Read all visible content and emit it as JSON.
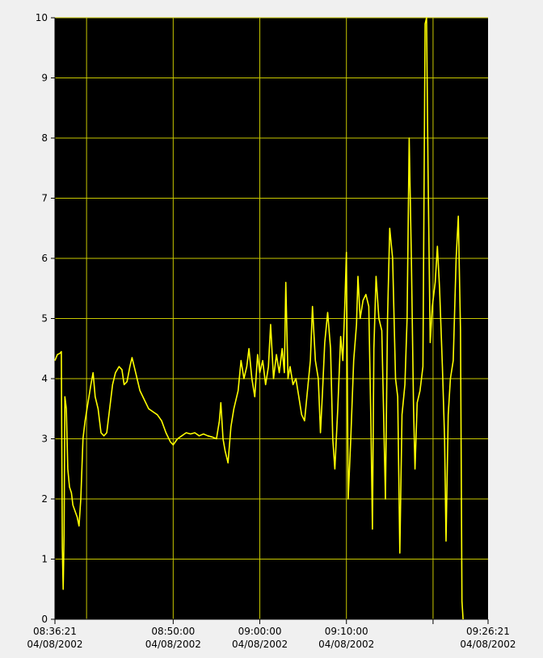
{
  "chart_data": {
    "type": "line",
    "title": "",
    "xlabel": "",
    "ylabel": "",
    "ylim": [
      0,
      10
    ],
    "xlim": [
      "08:36:21",
      "09:26:21"
    ],
    "grid": true,
    "colors": {
      "plot_background": "#000000",
      "page_background": "#f0f0f0",
      "grid": "#c8c800",
      "series": "#ffff00",
      "axis": "#000000"
    },
    "y_ticks": [
      {
        "value": 0,
        "label": "0"
      },
      {
        "value": 1,
        "label": "1"
      },
      {
        "value": 2,
        "label": "2"
      },
      {
        "value": 3,
        "label": "3"
      },
      {
        "value": 4,
        "label": "4"
      },
      {
        "value": 5,
        "label": "5"
      },
      {
        "value": 6,
        "label": "6"
      },
      {
        "value": 7,
        "label": "7"
      },
      {
        "value": 8,
        "label": "8"
      },
      {
        "value": 9,
        "label": "9"
      },
      {
        "value": 10,
        "label": "10"
      }
    ],
    "x_ticks": [
      {
        "time": "08:36:21",
        "time_label": "08:36:21",
        "date_label": "04/08/2002"
      },
      {
        "time": "08:50:00",
        "time_label": "08:50:00",
        "date_label": "04/08/2002"
      },
      {
        "time": "09:00:00",
        "time_label": "09:00:00",
        "date_label": "04/08/2002"
      },
      {
        "time": "09:10:00",
        "time_label": "09:10:00",
        "date_label": "04/08/2002"
      },
      {
        "time": "09:20:00",
        "time_label": "",
        "date_label": ""
      },
      {
        "time": "09:26:21",
        "time_label": "09:26:21",
        "date_label": "04/08/2002"
      }
    ],
    "x_gridlines": [
      "08:40:00",
      "08:50:00",
      "09:00:00",
      "09:10:00",
      "09:20:00"
    ],
    "series": [
      {
        "name": "",
        "points": [
          [
            "08:36:21",
            4.3
          ],
          [
            "08:36:38",
            4.4
          ],
          [
            "08:36:55",
            4.42
          ],
          [
            "08:37:05",
            4.45
          ],
          [
            "08:37:12",
            1.2
          ],
          [
            "08:37:18",
            0.5
          ],
          [
            "08:37:24",
            1.4
          ],
          [
            "08:37:30",
            3.7
          ],
          [
            "08:37:40",
            3.5
          ],
          [
            "08:37:50",
            2.5
          ],
          [
            "08:38:02",
            2.2
          ],
          [
            "08:38:15",
            2.1
          ],
          [
            "08:38:25",
            1.9
          ],
          [
            "08:38:40",
            1.8
          ],
          [
            "08:38:55",
            1.7
          ],
          [
            "08:39:08",
            1.55
          ],
          [
            "08:39:20",
            2.0
          ],
          [
            "08:39:35",
            3.0
          ],
          [
            "08:39:50",
            3.3
          ],
          [
            "08:40:10",
            3.6
          ],
          [
            "08:40:30",
            3.9
          ],
          [
            "08:40:45",
            4.1
          ],
          [
            "08:41:00",
            3.7
          ],
          [
            "08:41:20",
            3.5
          ],
          [
            "08:41:40",
            3.1
          ],
          [
            "08:42:00",
            3.05
          ],
          [
            "08:42:20",
            3.1
          ],
          [
            "08:42:40",
            3.5
          ],
          [
            "08:43:00",
            3.9
          ],
          [
            "08:43:20",
            4.1
          ],
          [
            "08:43:45",
            4.2
          ],
          [
            "08:44:05",
            4.15
          ],
          [
            "08:44:20",
            3.9
          ],
          [
            "08:44:40",
            3.95
          ],
          [
            "08:45:00",
            4.2
          ],
          [
            "08:45:15",
            4.35
          ],
          [
            "08:45:40",
            4.1
          ],
          [
            "08:46:10",
            3.8
          ],
          [
            "08:46:40",
            3.65
          ],
          [
            "08:47:10",
            3.5
          ],
          [
            "08:47:40",
            3.45
          ],
          [
            "08:48:10",
            3.4
          ],
          [
            "08:48:40",
            3.3
          ],
          [
            "08:49:10",
            3.1
          ],
          [
            "08:49:40",
            2.95
          ],
          [
            "08:50:00",
            2.9
          ],
          [
            "08:50:30",
            3.0
          ],
          [
            "08:51:00",
            3.05
          ],
          [
            "08:51:30",
            3.1
          ],
          [
            "08:52:00",
            3.08
          ],
          [
            "08:52:30",
            3.1
          ],
          [
            "08:53:00",
            3.05
          ],
          [
            "08:53:30",
            3.08
          ],
          [
            "08:54:00",
            3.05
          ],
          [
            "08:54:30",
            3.03
          ],
          [
            "08:55:00",
            3.0
          ],
          [
            "08:55:20",
            3.3
          ],
          [
            "08:55:30",
            3.6
          ],
          [
            "08:55:45",
            3.0
          ],
          [
            "08:56:00",
            2.8
          ],
          [
            "08:56:20",
            2.6
          ],
          [
            "08:56:40",
            3.2
          ],
          [
            "08:57:00",
            3.5
          ],
          [
            "08:57:30",
            3.8
          ],
          [
            "08:57:50",
            4.3
          ],
          [
            "08:58:10",
            4.0
          ],
          [
            "08:58:30",
            4.2
          ],
          [
            "08:58:45",
            4.5
          ],
          [
            "08:59:05",
            4.0
          ],
          [
            "08:59:25",
            3.7
          ],
          [
            "08:59:45",
            4.4
          ],
          [
            "09:00:00",
            4.1
          ],
          [
            "09:00:20",
            4.3
          ],
          [
            "09:00:40",
            3.9
          ],
          [
            "09:01:00",
            4.2
          ],
          [
            "09:01:15",
            4.9
          ],
          [
            "09:01:35",
            4.0
          ],
          [
            "09:01:55",
            4.4
          ],
          [
            "09:02:15",
            4.1
          ],
          [
            "09:02:35",
            4.5
          ],
          [
            "09:02:50",
            4.1
          ],
          [
            "09:03:00",
            5.6
          ],
          [
            "09:03:15",
            4.0
          ],
          [
            "09:03:30",
            4.2
          ],
          [
            "09:03:50",
            3.9
          ],
          [
            "09:04:10",
            4.0
          ],
          [
            "09:04:30",
            3.7
          ],
          [
            "09:04:50",
            3.4
          ],
          [
            "09:05:10",
            3.3
          ],
          [
            "09:05:30",
            3.8
          ],
          [
            "09:05:50",
            4.3
          ],
          [
            "09:06:05",
            5.2
          ],
          [
            "09:06:25",
            4.3
          ],
          [
            "09:06:45",
            4.0
          ],
          [
            "09:07:00",
            3.1
          ],
          [
            "09:07:15",
            3.8
          ],
          [
            "09:07:30",
            4.6
          ],
          [
            "09:07:50",
            5.1
          ],
          [
            "09:08:10",
            4.5
          ],
          [
            "09:08:25",
            3.0
          ],
          [
            "09:08:40",
            2.5
          ],
          [
            "09:09:00",
            3.5
          ],
          [
            "09:09:20",
            4.7
          ],
          [
            "09:09:35",
            4.3
          ],
          [
            "09:09:50",
            5.3
          ],
          [
            "09:10:00",
            6.1
          ],
          [
            "09:10:12",
            2.0
          ],
          [
            "09:10:30",
            3.0
          ],
          [
            "09:10:50",
            4.3
          ],
          [
            "09:11:10",
            4.9
          ],
          [
            "09:11:20",
            5.7
          ],
          [
            "09:11:35",
            5.0
          ],
          [
            "09:11:55",
            5.3
          ],
          [
            "09:12:15",
            5.4
          ],
          [
            "09:12:35",
            5.2
          ],
          [
            "09:12:50",
            3.2
          ],
          [
            "09:13:00",
            1.5
          ],
          [
            "09:13:10",
            4.5
          ],
          [
            "09:13:25",
            5.7
          ],
          [
            "09:13:45",
            5.0
          ],
          [
            "09:14:05",
            4.8
          ],
          [
            "09:14:15",
            3.7
          ],
          [
            "09:14:30",
            2.0
          ],
          [
            "09:14:45",
            5.0
          ],
          [
            "09:15:00",
            6.5
          ],
          [
            "09:15:20",
            6.0
          ],
          [
            "09:15:40",
            4.0
          ],
          [
            "09:15:55",
            3.7
          ],
          [
            "09:16:10",
            1.1
          ],
          [
            "09:16:25",
            3.4
          ],
          [
            "09:16:45",
            3.9
          ],
          [
            "09:17:00",
            5.0
          ],
          [
            "09:17:15",
            8.0
          ],
          [
            "09:17:30",
            6.0
          ],
          [
            "09:17:45",
            3.5
          ],
          [
            "09:17:55",
            2.5
          ],
          [
            "09:18:10",
            3.6
          ],
          [
            "09:18:30",
            3.8
          ],
          [
            "09:18:50",
            4.2
          ],
          [
            "09:19:05",
            9.9
          ],
          [
            "09:19:15",
            10.0
          ],
          [
            "09:19:25",
            7.5
          ],
          [
            "09:19:40",
            4.6
          ],
          [
            "09:19:55",
            5.2
          ],
          [
            "09:20:15",
            5.6
          ],
          [
            "09:20:30",
            6.2
          ],
          [
            "09:20:45",
            5.5
          ],
          [
            "09:21:05",
            4.2
          ],
          [
            "09:21:20",
            3.0
          ],
          [
            "09:21:30",
            1.3
          ],
          [
            "09:21:45",
            3.4
          ],
          [
            "09:22:00",
            4.0
          ],
          [
            "09:22:20",
            4.3
          ],
          [
            "09:22:40",
            6.0
          ],
          [
            "09:22:55",
            6.7
          ],
          [
            "09:23:10",
            4.8
          ],
          [
            "09:23:20",
            0.3
          ],
          [
            "09:23:28",
            0.0
          ]
        ]
      }
    ]
  }
}
